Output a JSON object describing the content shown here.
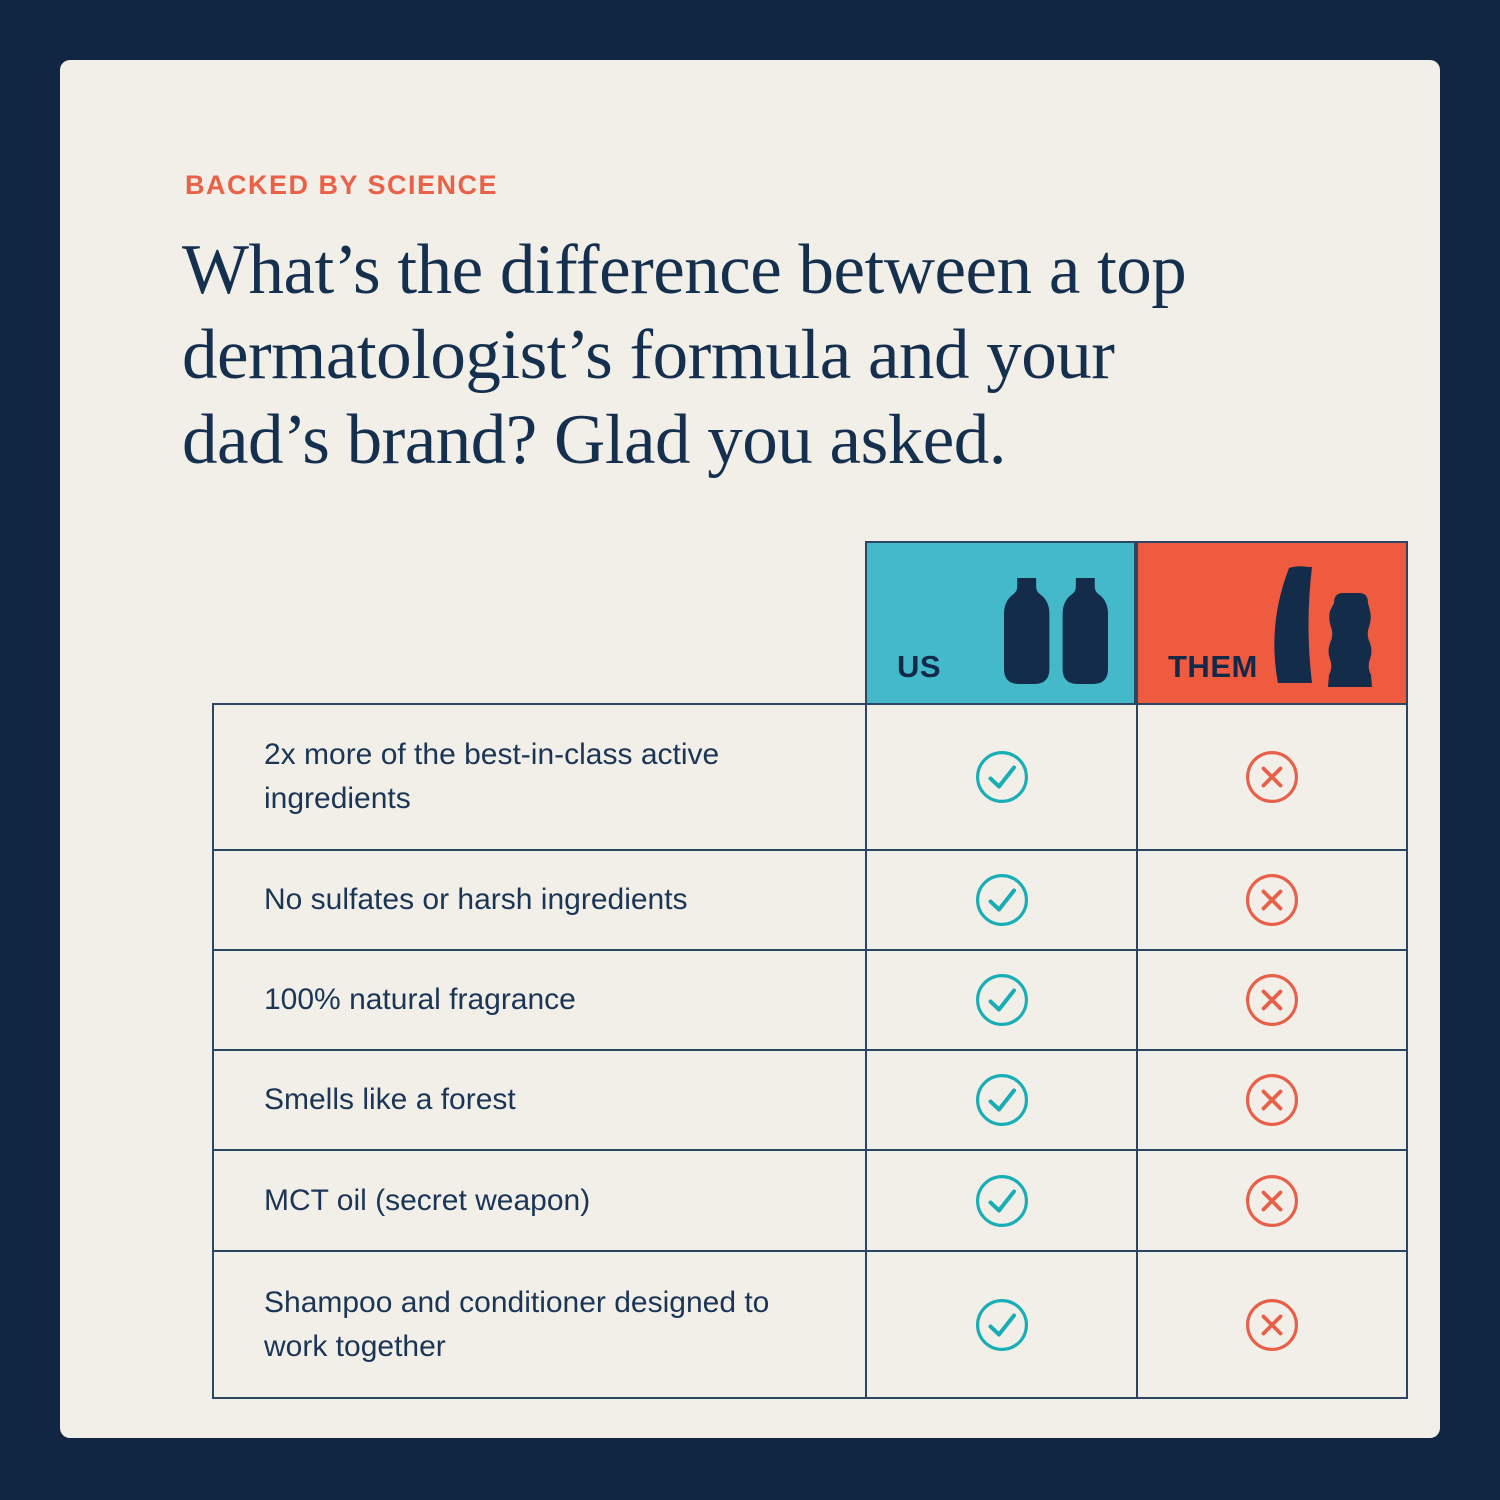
{
  "header": {
    "eyebrow": "BACKED BY SCIENCE",
    "headline": "What’s the difference between a top\ndermatologist’s formula and your\ndad’s brand? Glad you asked."
  },
  "table": {
    "columns": [
      {
        "id": "us",
        "label": "US",
        "icon": "two-round-bottles-icon",
        "bg": "#43B9CA"
      },
      {
        "id": "them",
        "label": "THEM",
        "icon": "two-shampoo-bottles-icon",
        "bg": "#EE5B3E"
      }
    ],
    "rows": [
      {
        "feature": "2x more of the best-in-class active ingredients",
        "us": "check",
        "them": "cross"
      },
      {
        "feature": "No sulfates or harsh ingredients",
        "us": "check",
        "them": "cross"
      },
      {
        "feature": "100% natural fragrance",
        "us": "check",
        "them": "cross"
      },
      {
        "feature": "Smells like a forest",
        "us": "check",
        "them": "cross"
      },
      {
        "feature": "MCT oil (secret weapon)",
        "us": "check",
        "them": "cross"
      },
      {
        "feature": "Shampoo and conditioner designed to work together",
        "us": "check",
        "them": "cross"
      }
    ]
  },
  "icons": {
    "check": "check-icon",
    "cross": "x-icon"
  },
  "colors": {
    "background_border": "#112642",
    "panel": "#F1EFE8",
    "accent_teal": "#43B9CA",
    "accent_orange": "#EE5B3E",
    "check_mark": "#19AEB5",
    "cross_mark": "#E8604A",
    "text_navy": "#15304E",
    "eyebrow_orange": "#E96247",
    "table_line": "#2B4562"
  }
}
